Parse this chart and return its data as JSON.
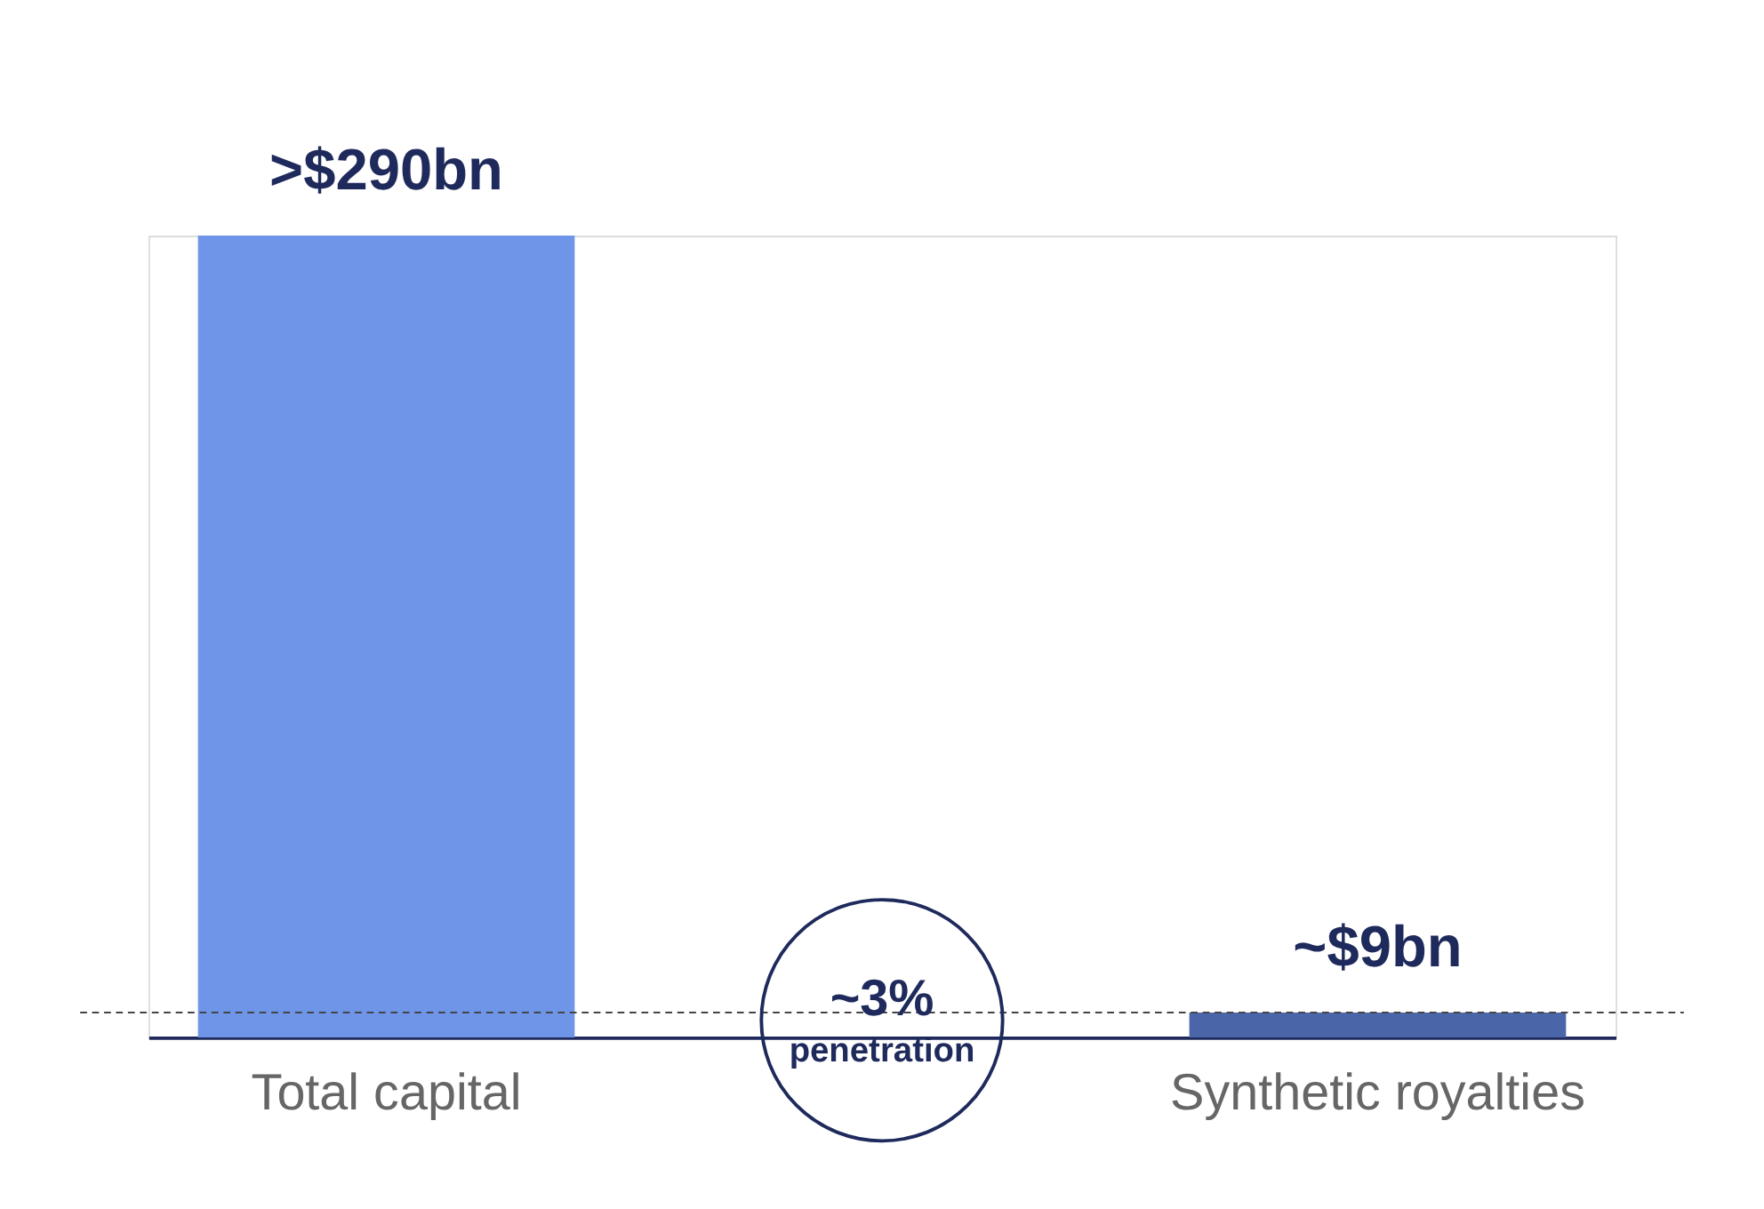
{
  "chart_data": {
    "type": "bar",
    "categories": [
      "Total capital",
      "Synthetic royalties"
    ],
    "series": [
      {
        "colors": [
          "#6e95e8",
          "#4a66a8"
        ],
        "values": [
          290,
          9
        ],
        "value_labels": [
          ">$290bn",
          "~$9bn"
        ]
      }
    ],
    "tick_labels": "x",
    "ref_lines": [
      {
        "axis": "y",
        "value": 9,
        "line_style": "dashed",
        "color": "#444444"
      }
    ],
    "annotations": [
      "~3%",
      "penetration"
    ]
  }
}
